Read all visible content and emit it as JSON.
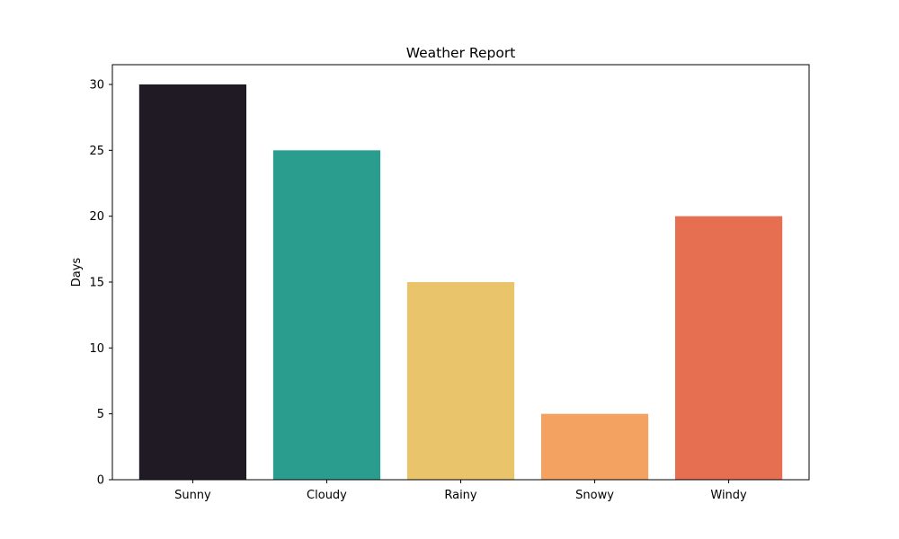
{
  "chart_data": {
    "type": "bar",
    "title": "Weather Report",
    "xlabel": "",
    "ylabel": "Days",
    "categories": [
      "Sunny",
      "Cloudy",
      "Rainy",
      "Snowy",
      "Windy"
    ],
    "values": [
      30,
      25,
      15,
      5,
      20
    ],
    "bar_colors": [
      "#1f1a24",
      "#2a9d8f",
      "#e9c46a",
      "#f4a261",
      "#e76f51"
    ],
    "ylim": [
      0,
      31.5
    ],
    "yticks": [
      0,
      5,
      10,
      15,
      20,
      25,
      30
    ],
    "grid": false,
    "legend": "none"
  }
}
